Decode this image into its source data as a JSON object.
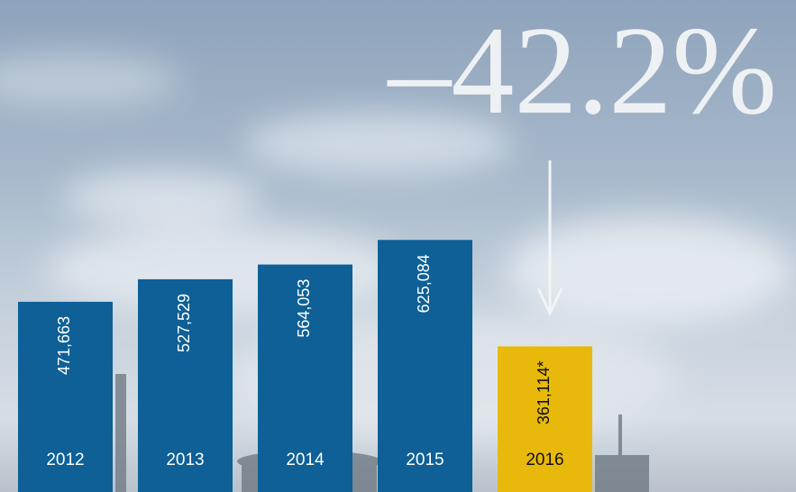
{
  "chart_data": {
    "type": "bar",
    "annotation": "–42.2%",
    "categories": [
      "2012",
      "2013",
      "2014",
      "2015",
      "2016"
    ],
    "values": [
      471663,
      527529,
      564053,
      625084,
      361114
    ],
    "value_labels": [
      "471,663",
      "527,529",
      "564,053",
      "625,084",
      "361,114*"
    ],
    "colors": [
      "#0e6096",
      "#0e6096",
      "#0e6096",
      "#0e6096",
      "#e8b90b"
    ],
    "ylim": [
      0,
      1220000
    ]
  }
}
